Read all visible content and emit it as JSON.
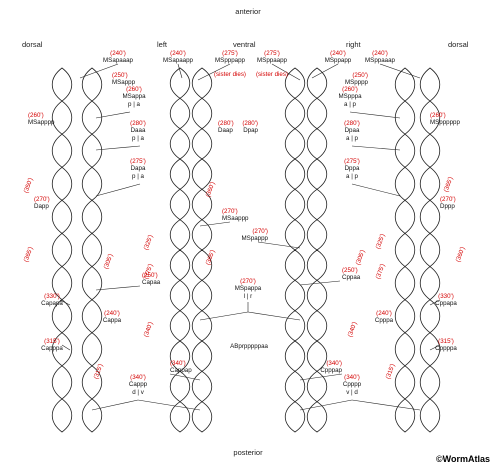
{
  "headers": {
    "anterior": "anterior",
    "posterior": "posterior",
    "dorsal_left": "dorsal",
    "left": "left",
    "ventral": "ventral",
    "right": "right",
    "dorsal_right": "dorsal"
  },
  "copyright": "©WormAtlas",
  "colors": {
    "label": "#111111",
    "time": "#d40000",
    "outline": "#222222"
  },
  "labels": [
    {
      "name": "MSapaaap",
      "text": "MSapaaap",
      "red": "(240')"
    },
    {
      "name": "MSapaapp",
      "text": "MSapaapp",
      "red": "(240')"
    },
    {
      "name": "MSpppapp",
      "text": "MSpppapp",
      "red": "(275')",
      "note": "(sister dies)"
    },
    {
      "name": "MSppaapp",
      "text": "MSppaapp",
      "red": "(275')",
      "note": "(sister dies)"
    },
    {
      "name": "MSppapp",
      "text": "MSppapp",
      "red": "(240')"
    },
    {
      "name": "MSppaaap",
      "text": "MSppaaap",
      "red": "(240')"
    },
    {
      "name": "MSappp",
      "text": "MSappp",
      "red": "(250')"
    },
    {
      "name": "MSpppp",
      "text": "MSpppp",
      "red": "(250')"
    },
    {
      "name": "MSappppa",
      "text": "MSappa",
      "sub": "p | a",
      "red": "(260')"
    },
    {
      "name": "MSapppp",
      "text": "MSapppp",
      "red": "(260')"
    },
    {
      "name": "MSpppa",
      "text": "MSpppa",
      "sub": "a | p",
      "red": "(260')"
    },
    {
      "name": "MSpppppp",
      "text": "MSpppppp",
      "red": "(260')"
    },
    {
      "name": "Daaa",
      "text": "Daaa",
      "sub": "p | a",
      "red": "(280')"
    },
    {
      "name": "Daap",
      "text": "Daap",
      "red": "(280')"
    },
    {
      "name": "Dpap",
      "text": "Dpap",
      "red": "(280')"
    },
    {
      "name": "Dpaa",
      "text": "Dpaa",
      "sub": "a | p",
      "red": "(280')"
    },
    {
      "name": "Dapa",
      "text": "Dapa",
      "sub": "p | a",
      "red": "(275')"
    },
    {
      "name": "Dppa",
      "text": "Dppa",
      "sub": "a | p",
      "red": "(275')"
    },
    {
      "name": "Dapp",
      "text": "Dapp",
      "red": "(270')"
    },
    {
      "name": "Dppp",
      "text": "Dppp",
      "red": "(270')"
    },
    {
      "name": "MSaappp",
      "text": "MSaappp",
      "red": "(270')"
    },
    {
      "name": "MSpappp",
      "text": "MSpappp",
      "red": "(270')"
    },
    {
      "name": "Capaa",
      "text": "Capaa",
      "red": "(250')"
    },
    {
      "name": "Cppaa",
      "text": "Cppaa",
      "red": "(250')"
    },
    {
      "name": "Capapa",
      "text": "Capapa",
      "red": "(330')"
    },
    {
      "name": "Cppapa",
      "text": "Cppapa",
      "red": "(330')"
    },
    {
      "name": "Cappa",
      "text": "Cappa",
      "red": "(240')"
    },
    {
      "name": "Cpppa",
      "text": "Cpppa",
      "red": "(240')"
    },
    {
      "name": "MSpappa",
      "text": "MSpappa",
      "sub": "l | r",
      "red": "(270')"
    },
    {
      "name": "Capppa",
      "text": "Capppa",
      "red": "(315')"
    },
    {
      "name": "Cppppa",
      "text": "Cppppa",
      "red": "(315')"
    },
    {
      "name": "ABprpppppaa",
      "text": "ABprpppppaa",
      "red": ""
    },
    {
      "name": "Cappap",
      "text": "Cappap",
      "red": "(340')"
    },
    {
      "name": "Cpppap",
      "text": "Cpppap",
      "red": "(340')"
    },
    {
      "name": "Cappp",
      "text": "Cappp",
      "sub": "d | v",
      "red": "(340')"
    },
    {
      "name": "Cpppp",
      "text": "Cpppp",
      "sub": "v | d",
      "red": "(340')"
    }
  ],
  "times": [
    "(350')",
    "(365')",
    "(305')",
    "(325')",
    "(375')",
    "(340')",
    "(315')",
    "(360')",
    "(365')",
    "(305')",
    "(325')",
    "(375')",
    "(340')",
    "(315')",
    "(360')",
    "(365')"
  ]
}
